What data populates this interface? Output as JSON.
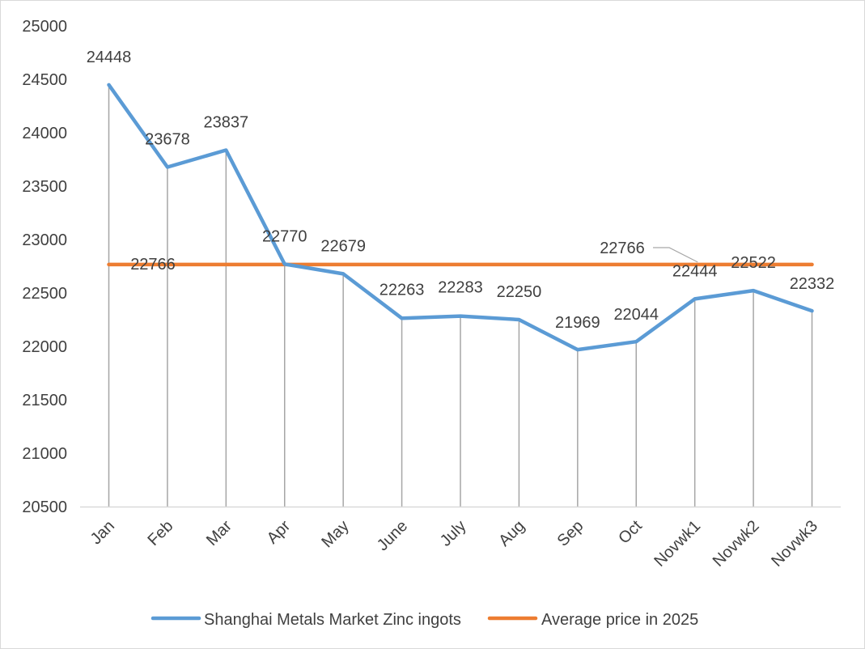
{
  "chart_data": {
    "type": "line",
    "title": "",
    "xlabel": "",
    "ylabel": "",
    "categories": [
      "Jan",
      "Feb",
      "Mar",
      "Apr",
      "May",
      "June",
      "July",
      "Aug",
      "Sep",
      "Oct",
      "Novwk1",
      "Novwk2",
      "Novwk3"
    ],
    "ylim": [
      20500,
      25000
    ],
    "yticks": [
      20500,
      21000,
      21500,
      22000,
      22500,
      23000,
      23500,
      24000,
      24500,
      25000
    ],
    "grid": "vertical",
    "legend_position": "bottom",
    "series": [
      {
        "name": "Shanghai Metals Market Zinc ingots",
        "color": "#5B9BD5",
        "values": [
          24448,
          23678,
          23837,
          22770,
          22679,
          22263,
          22283,
          22250,
          21969,
          22044,
          22444,
          22522,
          22332
        ]
      },
      {
        "name": "Average price in 2025",
        "color": "#ED7D31",
        "values": [
          22766,
          22766,
          22766,
          22766,
          22766,
          22766,
          22766,
          22766,
          22766,
          22766,
          22766,
          22766,
          22766
        ],
        "labels": [
          {
            "index": 0,
            "text": "22766"
          },
          {
            "index": 9,
            "text": "22766"
          }
        ]
      }
    ]
  }
}
